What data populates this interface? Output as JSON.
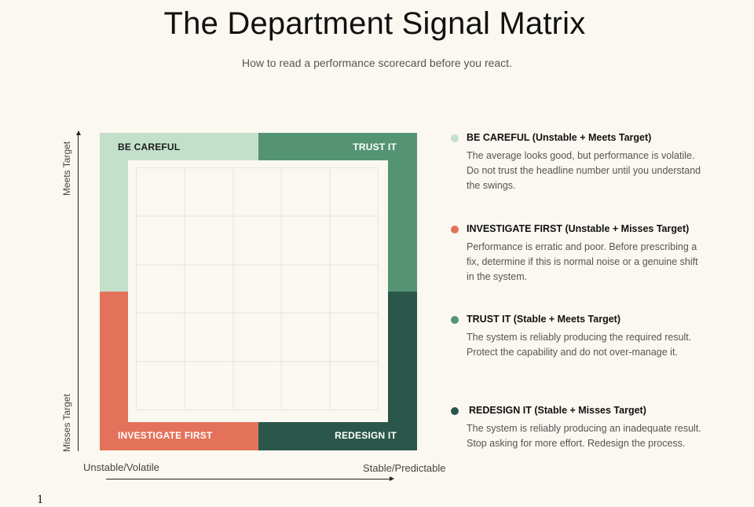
{
  "header": {
    "title": "The Department Signal Matrix",
    "subtitle": "How to read a performance scorecard before you react."
  },
  "axes": {
    "y_top": "Meets Target",
    "y_bottom": "Misses Target",
    "x_left": "Unstable/Volatile",
    "x_right": "Stable/Predictable"
  },
  "quadrants": {
    "top_left": {
      "label": "BE CAREFUL",
      "color": "#c3e0cb"
    },
    "top_right": {
      "label": "TRUST IT",
      "color": "#549474"
    },
    "bottom_left": {
      "label": "INVESTIGATE FIRST",
      "color": "#e4725a"
    },
    "bottom_right": {
      "label": "REDESIGN IT",
      "color": "#2b574a"
    }
  },
  "legend": [
    {
      "title": "BE CAREFUL (Unstable + Meets Target)",
      "desc": "The average looks good, but performance is volatile. Do not trust the headline number until you understand the swings.",
      "color": "#c3e0cb"
    },
    {
      "title": "INVESTIGATE FIRST (Unstable + Misses Target)",
      "desc": "Performance is erratic and poor. Before prescribing a fix, determine if this is normal noise or a genuine shift in the system.",
      "color": "#e4725a"
    },
    {
      "title": "TRUST IT (Stable + Meets Target)",
      "desc": "The system is reliably producing the required result. Protect the capability and do not over-manage it.",
      "color": "#549474"
    },
    {
      "title": "REDESIGN IT (Stable + Misses Target)",
      "desc": "The system is reliably producing an inadequate result. Stop asking for more effort. Redesign the process.",
      "color": "#2b574a"
    }
  ],
  "footer": {
    "page_number": "1"
  }
}
